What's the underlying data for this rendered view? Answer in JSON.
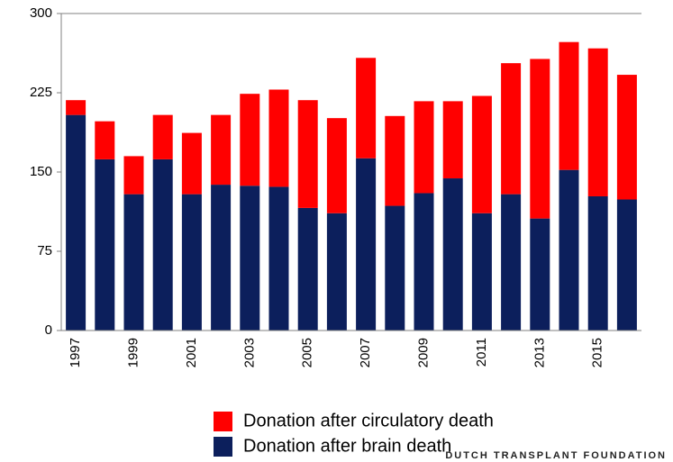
{
  "chart_data": {
    "type": "stacked_bar",
    "categories": [
      "1997",
      null,
      "1999",
      null,
      "2001",
      null,
      "2003",
      null,
      "2005",
      null,
      "2007",
      null,
      "2009",
      null,
      "2011",
      null,
      "2013",
      null,
      "2015",
      null
    ],
    "series": [
      {
        "name": "Donation after brain death",
        "color": "#0c1f5c",
        "values": [
          204,
          162,
          129,
          162,
          129,
          138,
          137,
          136,
          116,
          111,
          163,
          118,
          130,
          144,
          111,
          129,
          106,
          152,
          127,
          124
        ]
      },
      {
        "name": "Donation after circulatory death",
        "color": "#ff0000",
        "values": [
          14,
          36,
          36,
          42,
          58,
          66,
          87,
          92,
          102,
          90,
          95,
          85,
          87,
          73,
          111,
          124,
          151,
          121,
          140,
          118
        ]
      }
    ],
    "ylim": [
      0,
      300
    ],
    "yticks": [
      0,
      75,
      150,
      225,
      300
    ],
    "grid": false,
    "watermark": "DUTCH TRANSPLANT FOUNDATION"
  }
}
